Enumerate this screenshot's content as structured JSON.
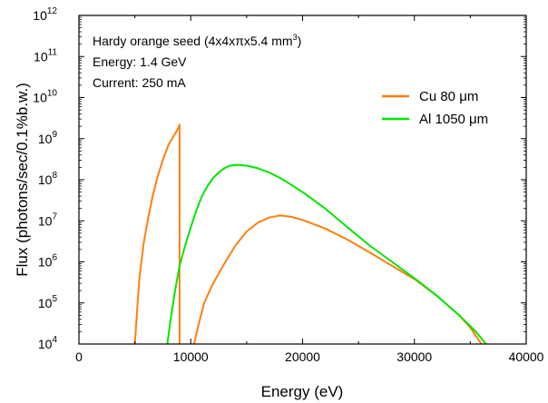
{
  "chart_data": {
    "type": "line",
    "xlabel": "Energy (eV)",
    "ylabel": "Flux (photons/sec/0.1%b.w.)",
    "xlim": [
      0,
      40000
    ],
    "ylim": [
      10000,
      1000000000000
    ],
    "yscale": "log",
    "x_ticks": [
      0,
      10000,
      20000,
      30000,
      40000
    ],
    "x_tick_labels": [
      "0",
      "10000",
      "20000",
      "30000",
      "40000"
    ],
    "y_ticks": [
      4,
      5,
      6,
      7,
      8,
      9,
      10,
      11,
      12
    ],
    "grid": false,
    "legend_position": "top-right",
    "annotations": {
      "sample_main": "Hardy orange seed (4x4x",
      "sample_pi": "π",
      "sample_dims": "x5.4 mm",
      "sample_sup": "3",
      "sample_close": ")",
      "energy": "Energy: 1.4 GeV",
      "current": "Current: 250 mA"
    },
    "series": [
      {
        "name": "Cu 80 μm",
        "color": "#ff7f0f",
        "segments": [
          [
            [
              5000,
              10000
            ],
            [
              5400,
              400000
            ],
            [
              5800,
              3000000
            ],
            [
              6200,
              12000000
            ],
            [
              6600,
              40000000
            ],
            [
              7000,
              110000000
            ],
            [
              7500,
              300000000
            ],
            [
              8000,
              700000000
            ],
            [
              8500,
              1200000000
            ],
            [
              8900,
              1800000000
            ],
            [
              9000,
              2200000000
            ],
            [
              9000,
              10000
            ]
          ],
          [
            [
              10300,
              10000
            ],
            [
              10700,
              30000
            ],
            [
              11200,
              100000
            ],
            [
              12000,
              300000
            ],
            [
              13000,
              900000
            ],
            [
              14000,
              2500000
            ],
            [
              15000,
              5500000
            ],
            [
              16000,
              9000000
            ],
            [
              17000,
              12000000
            ],
            [
              18000,
              13500000
            ],
            [
              19000,
              12500000
            ],
            [
              20000,
              10500000
            ],
            [
              22000,
              6500000
            ],
            [
              24000,
              3500000
            ],
            [
              26000,
              1700000
            ],
            [
              28000,
              800000
            ],
            [
              30000,
              380000
            ],
            [
              32000,
              150000
            ],
            [
              34000,
              50000
            ],
            [
              35000,
              25000
            ],
            [
              36000,
              10000
            ]
          ]
        ]
      },
      {
        "name": "Al 1050 μm",
        "color": "#00e600",
        "segments": [
          [
            [
              7900,
              10000
            ],
            [
              8200,
              40000
            ],
            [
              8600,
              200000
            ],
            [
              9000,
              800000
            ],
            [
              9500,
              2500000
            ],
            [
              10000,
              7000000
            ],
            [
              10500,
              18000000
            ],
            [
              11000,
              40000000
            ],
            [
              11500,
              70000000
            ],
            [
              12000,
              110000000
            ],
            [
              12500,
              150000000
            ],
            [
              13000,
              190000000
            ],
            [
              13500,
              220000000
            ],
            [
              14200,
              230000000
            ],
            [
              15000,
              220000000
            ],
            [
              16000,
              190000000
            ],
            [
              17000,
              150000000
            ],
            [
              18000,
              110000000
            ],
            [
              19000,
              75000000
            ],
            [
              20000,
              50000000
            ],
            [
              22000,
              20000000
            ],
            [
              24000,
              7000000
            ],
            [
              26000,
              2500000
            ],
            [
              28000,
              1000000
            ],
            [
              30000,
              400000
            ],
            [
              32000,
              150000
            ],
            [
              34000,
              50000
            ],
            [
              35500,
              20000
            ],
            [
              36400,
              10000
            ]
          ]
        ]
      }
    ]
  }
}
